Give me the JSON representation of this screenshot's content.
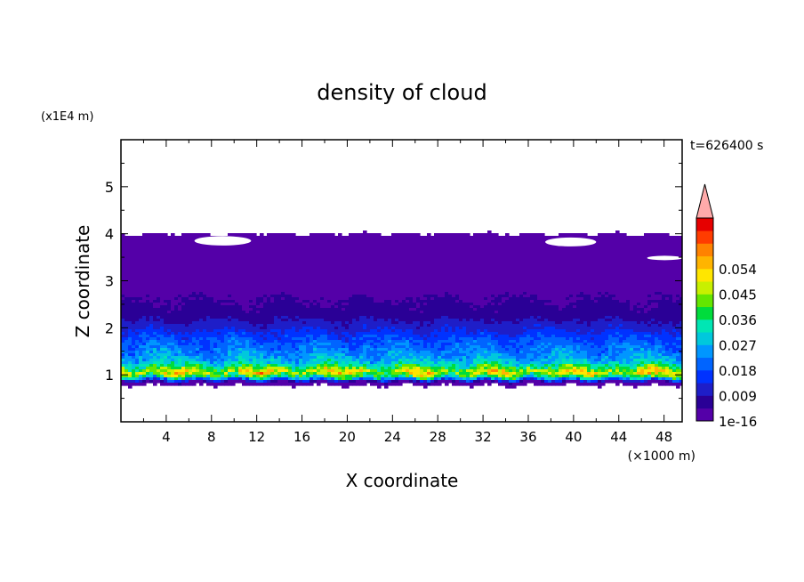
{
  "chart_data": {
    "type": "heatmap",
    "title": "density of cloud",
    "xlabel": "X coordinate",
    "ylabel": "Z coordinate",
    "x_unit": "(×1000 m)",
    "y_unit": "(x1E4 m)",
    "time_label": "t=626400 s",
    "xlim": [
      0,
      49.6
    ],
    "ylim": [
      0,
      6
    ],
    "x_ticks": [
      4,
      8,
      12,
      16,
      20,
      24,
      28,
      32,
      36,
      40,
      44,
      48
    ],
    "y_ticks": [
      1,
      2,
      3,
      4,
      5
    ],
    "colorbar": {
      "tick_labels": [
        "1e-16",
        "0.009",
        "0.018",
        "0.027",
        "0.036",
        "0.045",
        "0.054"
      ],
      "tick_values": [
        0,
        0.009,
        0.018,
        0.027,
        0.036,
        0.045,
        0.054
      ],
      "colors": [
        "#5400a8",
        "#2a0096",
        "#1e1ec8",
        "#0032ff",
        "#0064ff",
        "#0096ff",
        "#00c8dc",
        "#00e6b4",
        "#00dc3c",
        "#64e600",
        "#c8f000",
        "#ffe600",
        "#ffb400",
        "#ff8200",
        "#ff3c00",
        "#e60000"
      ],
      "extend_color": "#ffaaaa"
    },
    "profile": [
      {
        "z": 0.78,
        "density": 0.0
      },
      {
        "z": 0.85,
        "density": 0.004
      },
      {
        "z": 0.95,
        "density": 0.035
      },
      {
        "z": 1.05,
        "density": 0.05
      },
      {
        "z": 1.15,
        "density": 0.04
      },
      {
        "z": 1.25,
        "density": 0.03
      },
      {
        "z": 1.4,
        "density": 0.025
      },
      {
        "z": 1.6,
        "density": 0.021
      },
      {
        "z": 1.8,
        "density": 0.017
      },
      {
        "z": 2.0,
        "density": 0.012
      },
      {
        "z": 2.3,
        "density": 0.006
      },
      {
        "z": 2.7,
        "density": 0.004
      },
      {
        "z": 3.0,
        "density": 0.002
      },
      {
        "z": 3.4,
        "density": 0.0015
      },
      {
        "z": 3.9,
        "density": 0.0003
      },
      {
        "z": 4.0,
        "density": 0.0
      }
    ]
  }
}
